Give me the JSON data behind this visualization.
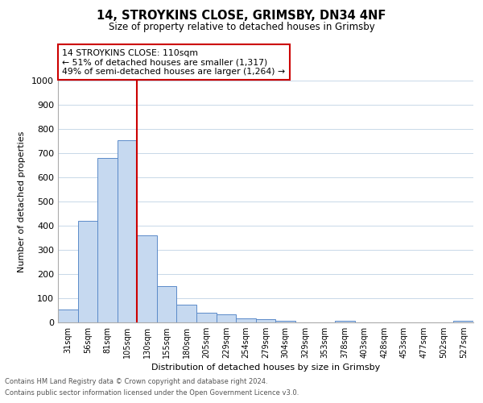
{
  "title": "14, STROYKINS CLOSE, GRIMSBY, DN34 4NF",
  "subtitle": "Size of property relative to detached houses in Grimsby",
  "xlabel": "Distribution of detached houses by size in Grimsby",
  "ylabel": "Number of detached properties",
  "bar_labels": [
    "31sqm",
    "56sqm",
    "81sqm",
    "105sqm",
    "130sqm",
    "155sqm",
    "180sqm",
    "205sqm",
    "229sqm",
    "254sqm",
    "279sqm",
    "304sqm",
    "329sqm",
    "353sqm",
    "378sqm",
    "403sqm",
    "428sqm",
    "453sqm",
    "477sqm",
    "502sqm",
    "527sqm"
  ],
  "bar_values": [
    52,
    420,
    680,
    755,
    360,
    150,
    75,
    40,
    32,
    18,
    13,
    8,
    0,
    0,
    7,
    0,
    0,
    0,
    0,
    0,
    8
  ],
  "bar_color": "#c6d9f0",
  "bar_edge_color": "#5b8ac9",
  "vline_x": 3.5,
  "vline_color": "#cc0000",
  "ylim": [
    0,
    1000
  ],
  "yticks": [
    0,
    100,
    200,
    300,
    400,
    500,
    600,
    700,
    800,
    900,
    1000
  ],
  "annotation_title": "14 STROYKINS CLOSE: 110sqm",
  "annotation_line1": "← 51% of detached houses are smaller (1,317)",
  "annotation_line2": "49% of semi-detached houses are larger (1,264) →",
  "annotation_box_color": "#ffffff",
  "annotation_box_edge": "#cc0000",
  "footer_line1": "Contains HM Land Registry data © Crown copyright and database right 2024.",
  "footer_line2": "Contains public sector information licensed under the Open Government Licence v3.0.",
  "background_color": "#ffffff",
  "grid_color": "#c8d8e8"
}
